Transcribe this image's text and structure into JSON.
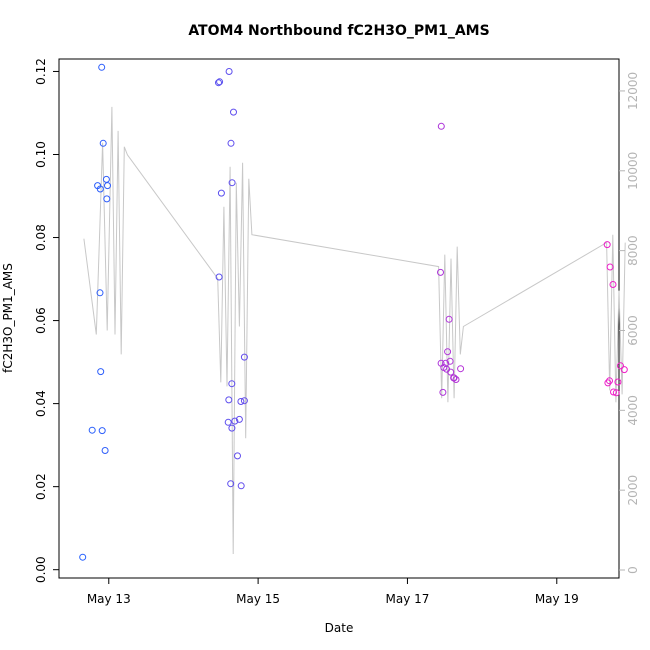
{
  "chart_data": {
    "type": "scatter",
    "title": "ATOM4 Northbound fC2H3O_PM1_AMS",
    "xlabel": "Date",
    "ylabel": "fC2H3O_PM1_AMS",
    "xlim": [
      "2018-05-12T08:00",
      "2018-05-19T20:00"
    ],
    "ylim": [
      -0.002,
      0.123
    ],
    "y_ticks": [
      "0.00",
      "0.02",
      "0.04",
      "0.06",
      "0.08",
      "0.10",
      "0.12"
    ],
    "x_ticks": [
      {
        "date": "2018-05-13T00:00",
        "label": "May 13"
      },
      {
        "date": "2018-05-15T00:00",
        "label": "May 15"
      },
      {
        "date": "2018-05-17T00:00",
        "label": "May 17"
      },
      {
        "date": "2018-05-19T00:00",
        "label": "May 19"
      }
    ],
    "secondary_axis": {
      "side": "right",
      "ylim": [
        -200,
        12800
      ],
      "ticks": [
        "0",
        "2000",
        "4000",
        "6000",
        "8000",
        "10000",
        "12000"
      ],
      "color": "#b4b4b4"
    },
    "grid": false,
    "colors": {
      "line": "#c8c8c8",
      "axis": "#000000",
      "axis_right": "#b4b4b4",
      "points_start": "#1e64ff",
      "points_end": "#f01ec8"
    },
    "series": [
      {
        "kind": "points",
        "x": [
          "2018-05-12T15:38",
          "2018-05-12T18:41",
          "2018-05-12T21:11",
          "2018-05-12T21:43",
          "2018-05-12T23:14",
          "2018-05-12T21:24",
          "2018-05-12T22:12",
          "2018-05-12T22:50",
          "2018-05-12T23:21",
          "2018-05-12T23:36",
          "2018-05-12T20:24",
          "2018-05-12T21:54",
          "2018-05-12T21:17",
          "2018-05-14T11:38",
          "2018-05-14T11:17",
          "2018-05-14T11:28",
          "2018-05-14T12:12",
          "2018-05-14T14:41",
          "2018-05-14T16:05",
          "2018-05-14T15:18",
          "2018-05-14T15:38",
          "2018-05-14T14:34",
          "2018-05-14T19:35",
          "2018-05-14T15:33",
          "2018-05-14T14:23",
          "2018-05-14T18:28",
          "2018-05-14T19:36",
          "2018-05-14T16:31",
          "2018-05-14T15:34",
          "2018-05-14T17:23",
          "2018-05-14T15:11",
          "2018-05-14T18:33",
          "2018-05-14T18:00",
          "2018-05-17T10:53",
          "2018-05-17T10:38",
          "2018-05-17T10:50",
          "2018-05-17T13:24",
          "2018-05-17T12:55",
          "2018-05-17T11:41",
          "2018-05-17T12:16",
          "2018-05-17T13:43",
          "2018-05-17T11:24",
          "2018-05-17T13:55",
          "2018-05-17T14:50",
          "2018-05-17T15:00",
          "2018-05-17T15:36",
          "2018-05-17T12:36",
          "2018-05-17T17:05",
          "2018-05-19T16:12",
          "2018-05-19T17:08",
          "2018-05-19T18:04",
          "2018-05-19T18:14",
          "2018-05-19T19:07",
          "2018-05-19T20:29",
          "2018-05-19T19:39",
          "2018-05-19T21:42",
          "2018-05-19T16:56",
          "2018-05-19T16:25"
        ],
        "y": [
          0.003,
          0.0336,
          0.0667,
          0.121,
          0.094,
          0.0477,
          0.1027,
          0.0287,
          0.0893,
          0.0925,
          0.0925,
          0.0335,
          0.0917,
          0.1175,
          0.1173,
          0.0705,
          0.0907,
          0.12,
          0.1102,
          0.1027,
          0.0932,
          0.0409,
          0.0512,
          0.0448,
          0.0355,
          0.0405,
          0.0407,
          0.0358,
          0.0341,
          0.0274,
          0.0207,
          0.0202,
          0.0362,
          0.1068,
          0.0716,
          0.0497,
          0.0603,
          0.0525,
          0.0487,
          0.0497,
          0.0502,
          0.0427,
          0.0476,
          0.0462,
          0.0462,
          0.0458,
          0.0483,
          0.0484,
          0.0783,
          0.0729,
          0.0687,
          0.0428,
          0.0426,
          0.0491,
          0.0452,
          0.0482,
          0.0455,
          0.045
        ]
      },
      {
        "kind": "line",
        "axis": "right",
        "x": [
          "2018-05-12T16:00",
          "2018-05-12T20:00",
          "2018-05-12T22:00",
          "2018-05-12T23:30",
          "2018-05-13T01:00",
          "2018-05-13T02:00",
          "2018-05-13T03:00",
          "2018-05-13T04:00",
          "2018-05-13T05:00",
          "2018-05-13T06:00",
          "2018-05-14T11:00",
          "2018-05-14T12:00",
          "2018-05-14T13:00",
          "2018-05-14T14:00",
          "2018-05-14T15:00",
          "2018-05-14T16:00",
          "2018-05-14T17:00",
          "2018-05-14T18:00",
          "2018-05-14T19:00",
          "2018-05-14T20:00",
          "2018-05-14T21:00",
          "2018-05-14T22:00",
          "2018-05-17T10:00",
          "2018-05-17T11:00",
          "2018-05-17T12:00",
          "2018-05-17T13:00",
          "2018-05-17T14:00",
          "2018-05-17T15:00",
          "2018-05-17T16:00",
          "2018-05-17T17:00",
          "2018-05-17T18:00",
          "2018-05-19T16:00",
          "2018-05-19T17:00",
          "2018-05-19T18:00",
          "2018-05-19T19:00",
          "2018-05-19T20:00",
          "2018-05-19T21:00",
          "2018-05-19T22:00"
        ],
        "y": [
          8300,
          5900,
          10700,
          6000,
          11600,
          5900,
          11000,
          5400,
          10600,
          10400,
          7300,
          4700,
          9100,
          4600,
          10100,
          400,
          9700,
          6100,
          10200,
          3300,
          9800,
          8400,
          7600,
          4300,
          7900,
          4200,
          7800,
          4300,
          8100,
          5400,
          6100,
          8200,
          4500,
          8400,
          4200,
          7000,
          4400,
          8200
        ]
      }
    ]
  }
}
